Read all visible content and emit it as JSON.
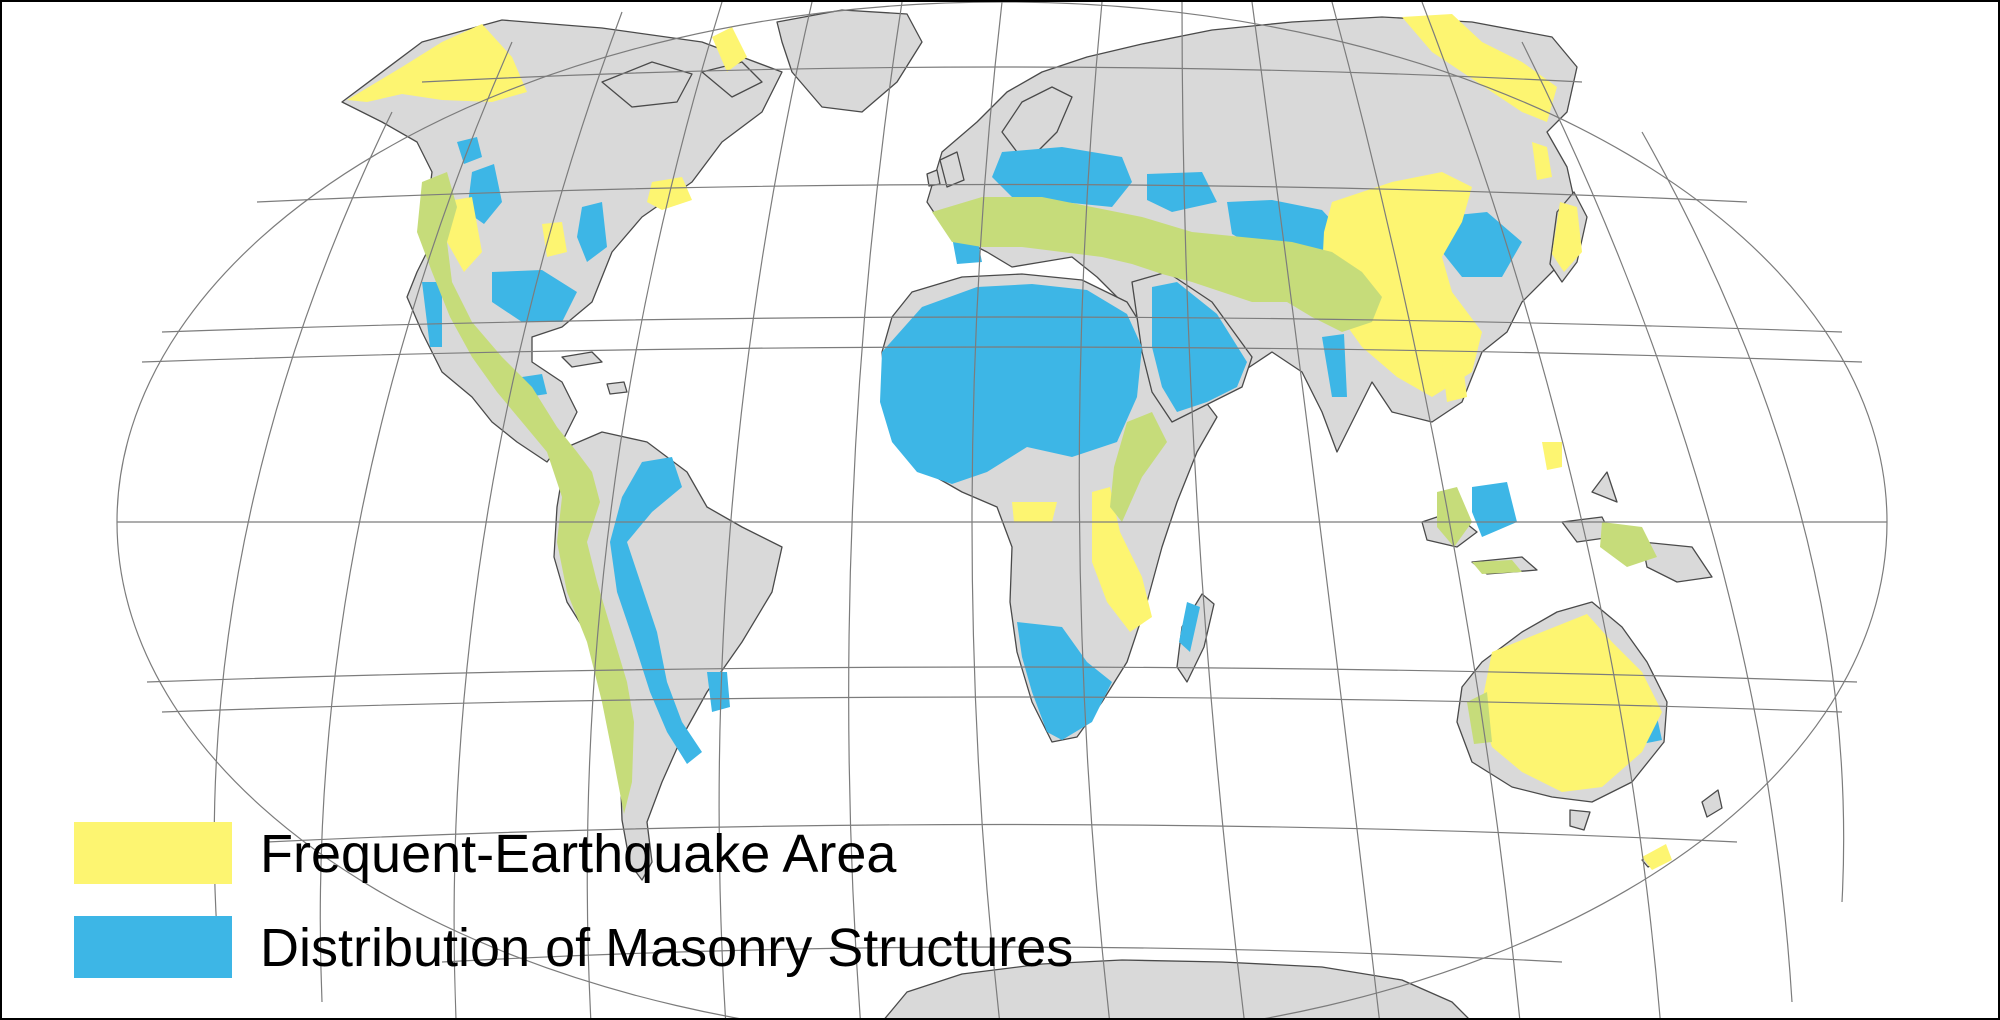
{
  "legend": {
    "earthquake_label": "Frequent-Earthquake Area",
    "masonry_label": "Distribution of Masonry Structures"
  },
  "colors": {
    "land": "#d9d9d9",
    "earthquake": "#fdf571",
    "masonry": "#3db6e6",
    "overlap": "#c6dc7a",
    "grid": "#7c7c7c",
    "border": "#000000"
  }
}
